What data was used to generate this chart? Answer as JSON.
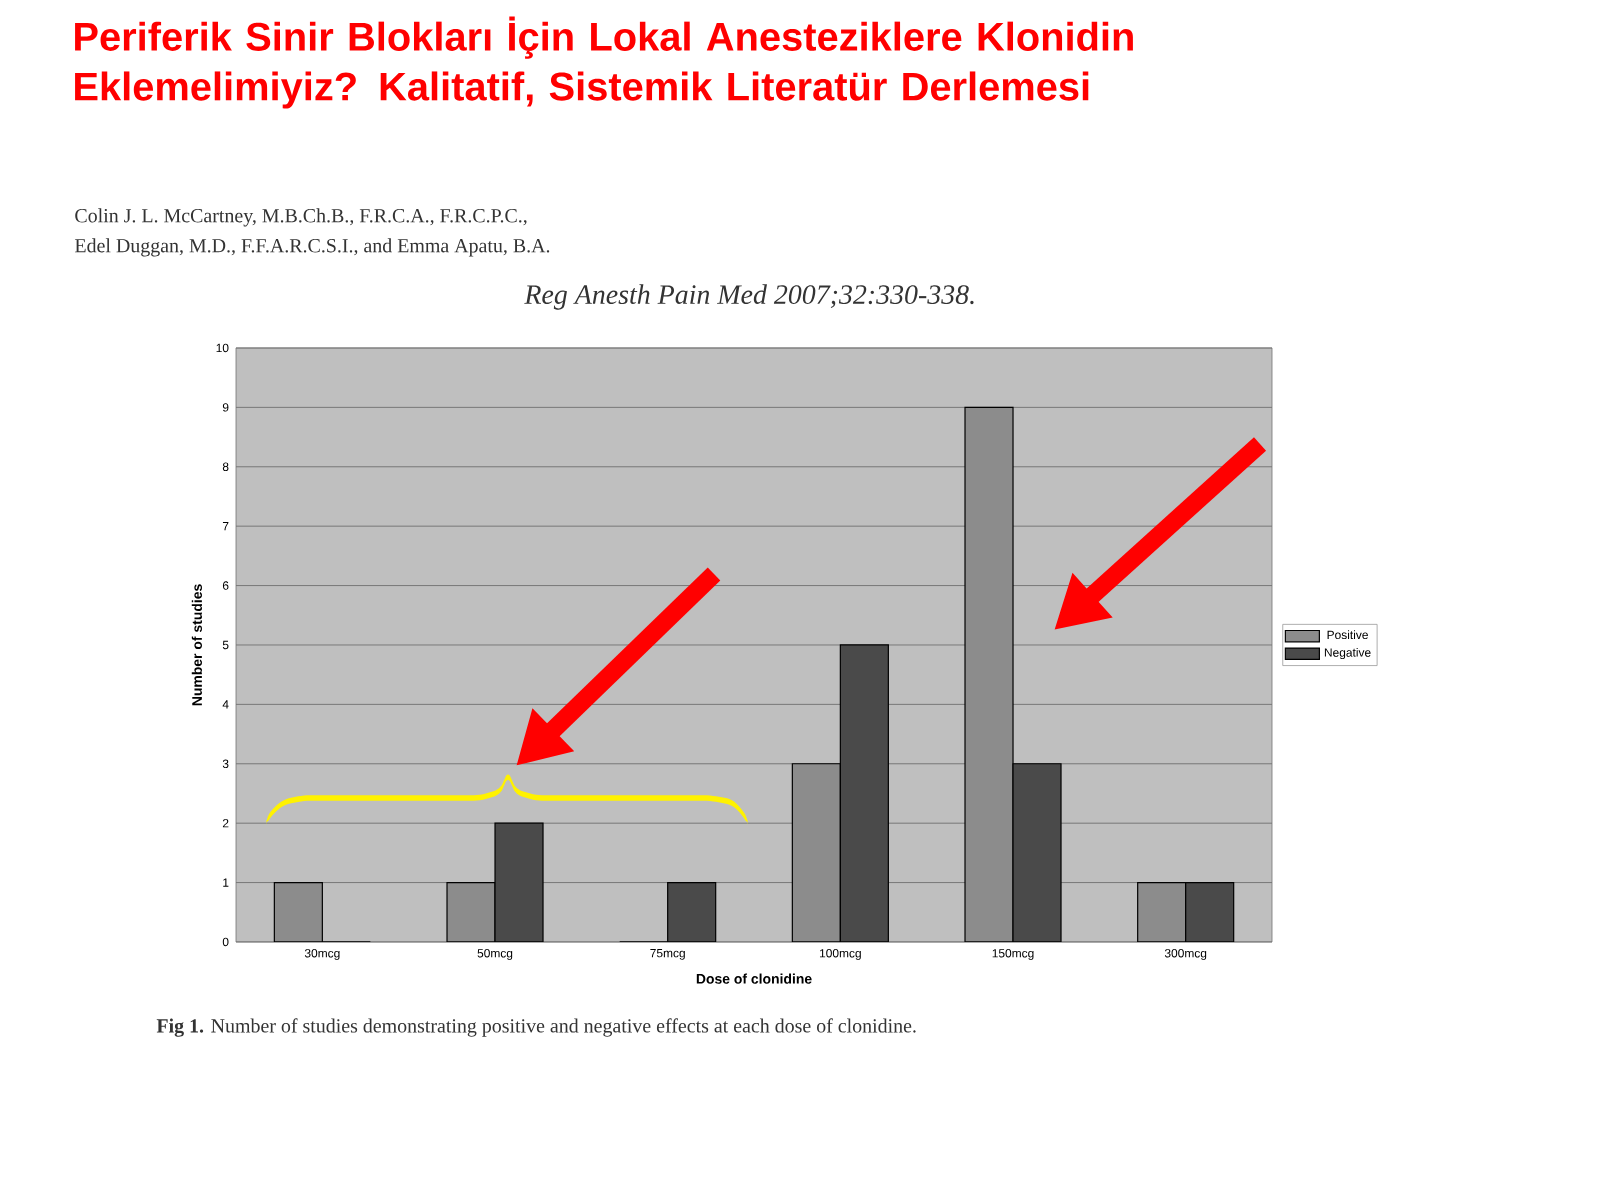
{
  "chart_data": {
    "type": "bar",
    "title": "Periferik Sinir Blokları İçin Lokal Anesteziklere Klonidin Eklemelimiyiz? Kalitatif, Sistemik Literatür Derlemesi",
    "annotations": [
      "Colin J. L. McCartney, M.B.Ch.B., F.R.C.A., F.R.C.P.C.,",
      "Edel Duggan, M.D., F.F.A.R.C.S.I., and Emma Apatu, B.A.",
      "*Reg Anesth Pain Med 2007;32:330-338.*",
      "**Fig 1.** Number of studies demonstrating positive and negative effects at each dose of clonidine."
    ],
    "xlabel": "Dose of clonidine",
    "ylabel": "Number of studies",
    "categories": [
      "30mcg",
      "50mcg",
      "75mcg",
      "100mcg",
      "150mcg",
      "300mcg"
    ],
    "series": [
      {
        "name": "Positive",
        "color": "#8c8c8c",
        "values": [
          1,
          1,
          0,
          3,
          9,
          1
        ]
      },
      {
        "name": "Negative",
        "color": "#4a4a4a",
        "values": [
          0,
          2,
          1,
          5,
          3,
          1
        ]
      }
    ],
    "ylim": [
      0,
      10
    ],
    "yticks": [
      0,
      1,
      2,
      3,
      4,
      5,
      6,
      7,
      8,
      9,
      10
    ],
    "grid": "y",
    "legend": "right"
  }
}
